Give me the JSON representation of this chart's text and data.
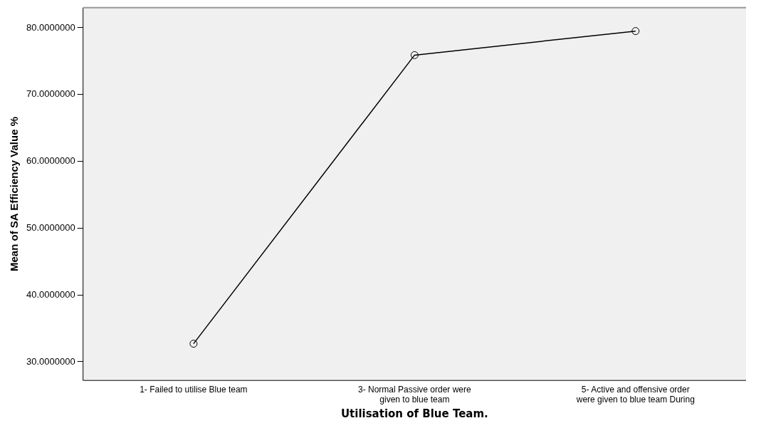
{
  "chart_data": {
    "type": "line",
    "xlabel": "Utilisation of Blue Team.",
    "ylabel": "Mean of SA Efficiency Value %",
    "categories": [
      "1- Failed to utilise Blue team",
      "3- Normal Passive order were given to blue team",
      "5- Active and offensive order were given to blue team During"
    ],
    "series": [
      {
        "color": "#000000",
        "values": [
          32.7,
          75.9,
          79.5
        ]
      }
    ],
    "ylim": [
      27.2,
      83.0
    ],
    "yticks": [
      {
        "value": 30,
        "label": "30.0000000"
      },
      {
        "value": 40,
        "label": "40.0000000"
      },
      {
        "value": 50,
        "label": "50.0000000"
      },
      {
        "value": 60,
        "label": "60.0000000"
      },
      {
        "value": 70,
        "label": "70.0000000"
      },
      {
        "value": 80,
        "label": "80.0000000"
      }
    ],
    "grid": false,
    "legend": false,
    "marker": "circle",
    "line_style": "solid"
  }
}
